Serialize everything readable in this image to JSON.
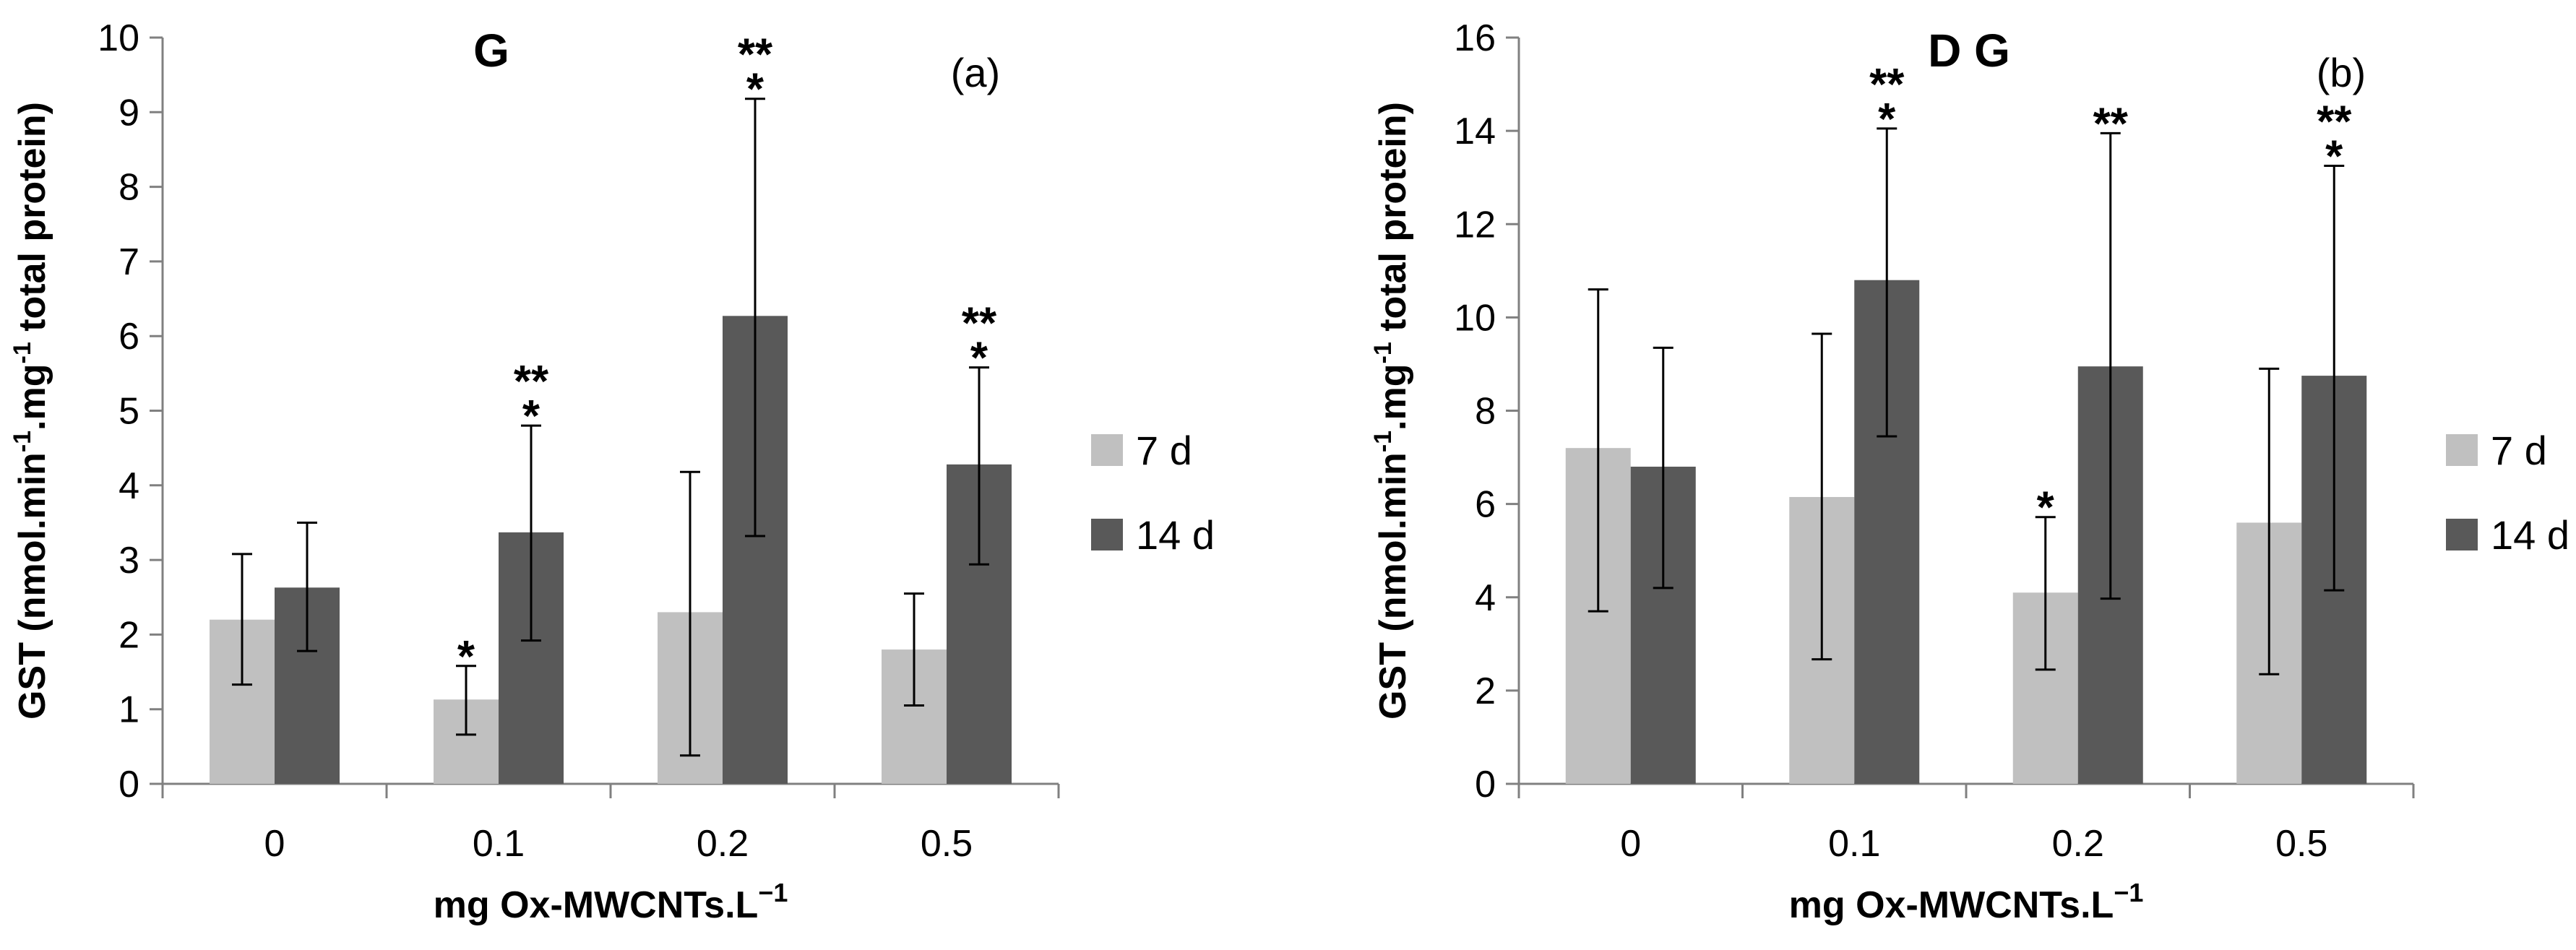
{
  "chart_data": [
    {
      "type": "bar",
      "title": "G",
      "panel_label": "(a)",
      "xlabel": "mg Ox-MWCNTs.L",
      "xlabel_sup": "−1",
      "ylabel_parts": [
        "GST (nmol.min",
        "-1",
        ".mg",
        "-1",
        " total protein)"
      ],
      "ylim": [
        0,
        10
      ],
      "yticks": [
        "0",
        "1",
        "2",
        "3",
        "4",
        "5",
        "6",
        "7",
        "8",
        "9",
        "10"
      ],
      "categories": [
        "0",
        "0.1",
        "0.2",
        "0.5"
      ],
      "series": [
        {
          "name": "7 d",
          "color": "#c0c0c0",
          "values": [
            2.2,
            1.13,
            2.3,
            1.8
          ],
          "err_upper": [
            3.08,
            1.58,
            4.18,
            2.55
          ],
          "err_lower": [
            1.33,
            0.66,
            0.38,
            1.05
          ],
          "markers": [
            "",
            "*",
            "",
            ""
          ]
        },
        {
          "name": "14 d",
          "color": "#595959",
          "values": [
            2.63,
            3.37,
            6.27,
            4.28
          ],
          "err_upper": [
            3.5,
            4.8,
            9.18,
            5.58
          ],
          "err_lower": [
            1.78,
            1.92,
            3.32,
            2.94
          ],
          "markers": [
            "",
            "**\n*",
            "**\n*",
            "**\n*"
          ]
        }
      ],
      "legend": [
        "7 d",
        "14 d"
      ]
    },
    {
      "type": "bar",
      "title": "D G",
      "panel_label": "(b)",
      "xlabel": "mg Ox-MWCNTs.L",
      "xlabel_sup": "−1",
      "ylabel_parts": [
        "GST (nmol.min",
        "-1",
        ".mg",
        "-1",
        " total protein)"
      ],
      "ylim": [
        0,
        16
      ],
      "yticks": [
        "0",
        "2",
        "4",
        "6",
        "8",
        "10",
        "12",
        "14",
        "16"
      ],
      "categories": [
        "0",
        "0.1",
        "0.2",
        "0.5"
      ],
      "series": [
        {
          "name": "7 d",
          "color": "#c0c0c0",
          "values": [
            7.2,
            6.15,
            4.1,
            5.6
          ],
          "err_upper": [
            10.6,
            9.65,
            5.72,
            8.9
          ],
          "err_lower": [
            3.7,
            2.67,
            2.45,
            2.35
          ],
          "markers": [
            "",
            "",
            "*",
            ""
          ]
        },
        {
          "name": "14 d",
          "color": "#595959",
          "values": [
            6.8,
            10.8,
            8.95,
            8.75
          ],
          "err_upper": [
            9.35,
            14.05,
            13.95,
            13.25
          ],
          "err_lower": [
            4.2,
            7.45,
            3.97,
            4.15
          ],
          "markers": [
            "",
            "**\n*",
            "**",
            "**\n*"
          ]
        }
      ],
      "legend": [
        "7 d",
        "14 d"
      ]
    }
  ]
}
